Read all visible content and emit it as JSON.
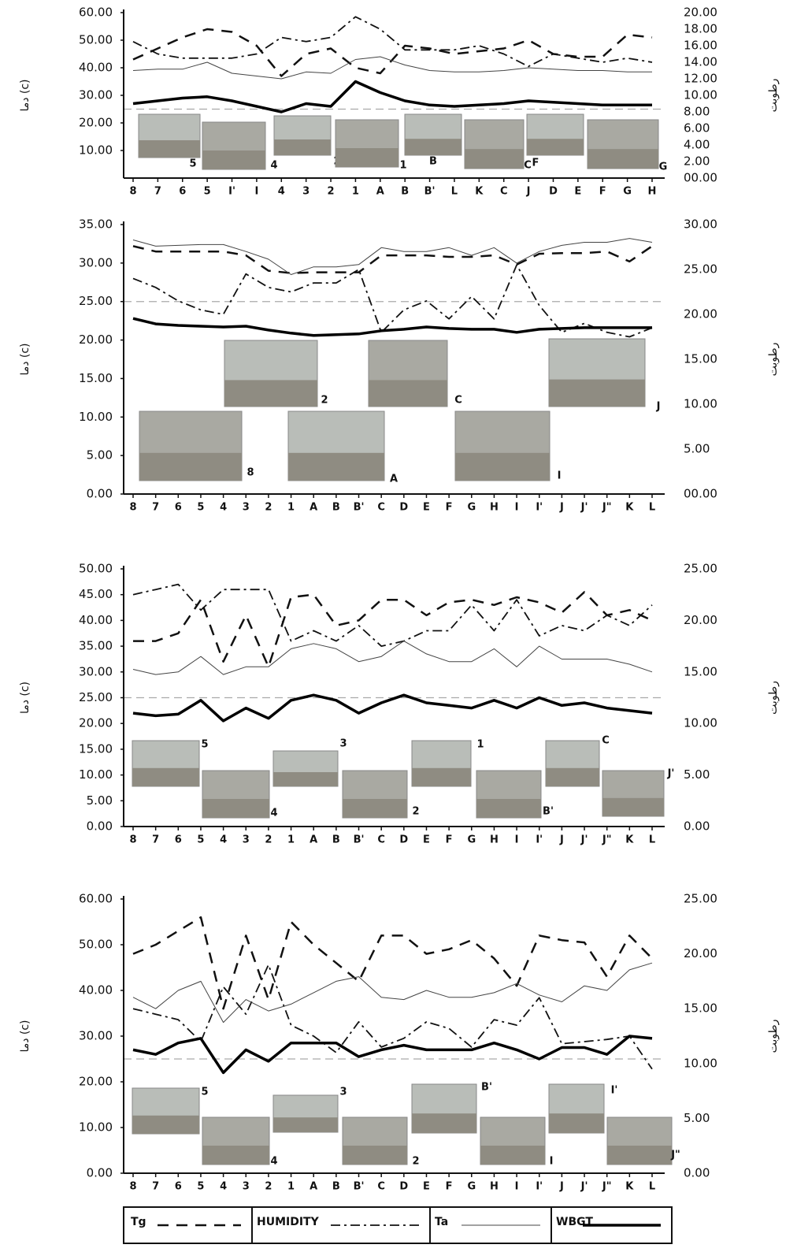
{
  "chart_data": [
    {
      "type": "line",
      "y_label": "دما (c)",
      "y2_label": "رطوبت",
      "categories": [
        "8",
        "7",
        "6",
        "5",
        "I'",
        "I",
        "4",
        "3",
        "2",
        "1",
        "A",
        "B",
        "B'",
        "L",
        "K",
        "C",
        "J",
        "D",
        "E",
        "F",
        "G",
        "H"
      ],
      "series": [
        {
          "name": "Tg",
          "color": "#111111",
          "dash": "14,10",
          "width": 2.5,
          "values": [
            43,
            47,
            51,
            54,
            53,
            48,
            37,
            45,
            47,
            40,
            38,
            48,
            47,
            45,
            46,
            47,
            50,
            45,
            44,
            44,
            52,
            51
          ]
        },
        {
          "name": "HUMIDITY",
          "color": "#111111",
          "dash": "12,5,3,5",
          "width": 1.8,
          "axis": "y2",
          "values": [
            16.5,
            15,
            14.5,
            14.5,
            14.5,
            15,
            17,
            16.5,
            17,
            19.5,
            18,
            15.5,
            15.5,
            15.5,
            16,
            15,
            13.5,
            15,
            14.5,
            14,
            14.5,
            14
          ]
        },
        {
          "name": "Ta",
          "color": "#444444",
          "dash": "none",
          "width": 1,
          "values": [
            39,
            39.5,
            39.5,
            42,
            38,
            37,
            36,
            38.5,
            38,
            43,
            44,
            41,
            39,
            38.5,
            38.5,
            39,
            40,
            39.5,
            39,
            39,
            38.5,
            38.5
          ]
        },
        {
          "name": "WBGT",
          "color": "#000000",
          "dash": "none",
          "width": 3.5,
          "values": [
            27,
            28,
            29,
            29.5,
            28,
            26,
            24,
            27,
            26,
            35,
            31,
            28,
            26.5,
            26,
            26.5,
            27,
            28,
            27.5,
            27,
            26.5,
            26.5,
            26.5
          ]
        }
      ],
      "ylim": [
        0,
        60
      ],
      "yticks": [
        {
          "value": 10,
          "label": "10.00"
        },
        {
          "value": 20,
          "label": "20.00"
        },
        {
          "value": 30,
          "label": "30.00"
        },
        {
          "value": 40,
          "label": "40.00"
        },
        {
          "value": 50,
          "label": "50.00"
        },
        {
          "value": 60,
          "label": "60.00"
        }
      ],
      "y2lim": [
        0,
        20
      ],
      "y2ticks": [
        {
          "value": 0,
          "label": "00.00"
        },
        {
          "value": 2,
          "label": "2.00"
        },
        {
          "value": 4,
          "label": "4.00"
        },
        {
          "value": 6,
          "label": "6.00"
        },
        {
          "value": 8,
          "label": "8.00"
        },
        {
          "value": 10,
          "label": "10.00"
        },
        {
          "value": 12,
          "label": "12.00"
        },
        {
          "value": 14,
          "label": "14.00"
        },
        {
          "value": 16,
          "label": "16.00"
        },
        {
          "value": 18,
          "label": "18.00"
        },
        {
          "value": 20,
          "label": "20.00"
        }
      ],
      "reference_line": 25,
      "annotations": [
        "5",
        "4",
        "2",
        "1",
        "B",
        "C",
        "F",
        "G"
      ]
    },
    {
      "type": "line",
      "y_label": "دما (c)",
      "y2_label": "رطوبت",
      "categories": [
        "8",
        "7",
        "6",
        "5",
        "4",
        "3",
        "2",
        "1",
        "A",
        "B",
        "B'",
        "C",
        "D",
        "E",
        "F",
        "G",
        "H",
        "I",
        "I'",
        "J",
        "J'",
        "J\"",
        "K",
        "L"
      ],
      "series": [
        {
          "name": "Tg",
          "color": "#111111",
          "dash": "14,10",
          "width": 2.5,
          "values": [
            32.2,
            31.5,
            31.5,
            31.5,
            31.5,
            31,
            29,
            28.7,
            28.8,
            28.8,
            28.8,
            31,
            31,
            31,
            30.8,
            30.8,
            31,
            29.8,
            31.2,
            31.3,
            31.3,
            31.5,
            30.2,
            32.2
          ]
        },
        {
          "name": "HUMIDITY",
          "color": "#111111",
          "dash": "12,5,3,5",
          "width": 1.8,
          "axis": "y2",
          "values": [
            24,
            23,
            21.5,
            20.5,
            20,
            24.5,
            23,
            22.5,
            23.5,
            23.5,
            25,
            18,
            20.5,
            21.5,
            19.5,
            22,
            19.5,
            25.5,
            21,
            18,
            19,
            18,
            17.5,
            18.5
          ]
        },
        {
          "name": "Ta",
          "color": "#444444",
          "dash": "none",
          "width": 1,
          "values": [
            33,
            32.2,
            32.3,
            32.4,
            32.4,
            31.5,
            30.5,
            28.5,
            29.5,
            29.5,
            29.8,
            32,
            31.5,
            31.5,
            32,
            31,
            32,
            30,
            31.5,
            32.3,
            32.7,
            32.7,
            33.2,
            32.7
          ]
        },
        {
          "name": "WBGT",
          "color": "#000000",
          "dash": "none",
          "width": 3.5,
          "values": [
            22.8,
            22.1,
            21.9,
            21.8,
            21.7,
            21.8,
            21.3,
            20.9,
            20.6,
            20.7,
            20.8,
            21.2,
            21.4,
            21.7,
            21.5,
            21.4,
            21.4,
            21,
            21.4,
            21.5,
            21.6,
            21.6,
            21.6,
            21.6
          ]
        }
      ],
      "ylim": [
        0,
        35
      ],
      "yticks": [
        {
          "value": 0,
          "label": "0.00"
        },
        {
          "value": 5,
          "label": "5.00"
        },
        {
          "value": 10,
          "label": "10.00"
        },
        {
          "value": 15,
          "label": "15.00"
        },
        {
          "value": 20,
          "label": "20.00"
        },
        {
          "value": 25,
          "label": "25.00"
        },
        {
          "value": 30,
          "label": "30.00"
        },
        {
          "value": 35,
          "label": "35.00"
        }
      ],
      "y2lim": [
        0,
        30
      ],
      "y2ticks": [
        {
          "value": 0,
          "label": "00.00"
        },
        {
          "value": 5,
          "label": "5.00"
        },
        {
          "value": 10,
          "label": "10.00"
        },
        {
          "value": 15,
          "label": "15.00"
        },
        {
          "value": 20,
          "label": "20.00"
        },
        {
          "value": 25,
          "label": "25.00"
        },
        {
          "value": 30,
          "label": "30.00"
        }
      ],
      "reference_line": 25,
      "annotations": [
        "2",
        "C",
        "J",
        "8",
        "A",
        "I"
      ]
    },
    {
      "type": "line",
      "y_label": "دما (c)",
      "y2_label": "رطوبت",
      "categories": [
        "8",
        "7",
        "6",
        "5",
        "4",
        "3",
        "2",
        "1",
        "A",
        "B",
        "B'",
        "C",
        "D",
        "E",
        "F",
        "G",
        "H",
        "I",
        "I'",
        "J",
        "J'",
        "J\"",
        "K",
        "L"
      ],
      "series": [
        {
          "name": "Tg",
          "color": "#111111",
          "dash": "14,10",
          "width": 2.5,
          "values": [
            36,
            36,
            37.5,
            44,
            32,
            41,
            31,
            44.5,
            45,
            39,
            40,
            44,
            44,
            41,
            43.5,
            44,
            43,
            44.5,
            43.5,
            41.5,
            45.5,
            41,
            42,
            40
          ]
        },
        {
          "name": "HUMIDITY",
          "color": "#111111",
          "dash": "12,5,3,5",
          "width": 1.8,
          "axis": "y2",
          "values": [
            22.5,
            23,
            23.5,
            21,
            23,
            23,
            23,
            18,
            19,
            18,
            19.5,
            17.5,
            18,
            19,
            19,
            21.5,
            19,
            22,
            18.5,
            19.5,
            19,
            20.5,
            19.5,
            21.5
          ]
        },
        {
          "name": "Ta",
          "color": "#444444",
          "dash": "none",
          "width": 1,
          "values": [
            30.5,
            29.5,
            30,
            33,
            29.5,
            31,
            31,
            34.5,
            35.5,
            34.5,
            32,
            33,
            36,
            33.5,
            32,
            32,
            34.5,
            31,
            35,
            32.5,
            32.5,
            32.5,
            31.5,
            30
          ]
        },
        {
          "name": "WBGT",
          "color": "#000000",
          "dash": "none",
          "width": 3.5,
          "values": [
            22,
            21.5,
            21.8,
            24.5,
            20.5,
            23,
            21,
            24.5,
            25.5,
            24.5,
            22,
            24,
            25.5,
            24,
            23.5,
            23,
            24.5,
            23,
            25,
            23.5,
            24,
            23,
            22.5,
            22
          ]
        }
      ],
      "ylim": [
        0,
        50
      ],
      "yticks": [
        {
          "value": 0,
          "label": "0.00"
        },
        {
          "value": 5,
          "label": "5.00"
        },
        {
          "value": 10,
          "label": "10.00"
        },
        {
          "value": 15,
          "label": "15.00"
        },
        {
          "value": 20,
          "label": "20.00"
        },
        {
          "value": 25,
          "label": "25.00"
        },
        {
          "value": 30,
          "label": "30.00"
        },
        {
          "value": 35,
          "label": "35.00"
        },
        {
          "value": 40,
          "label": "40.00"
        },
        {
          "value": 45,
          "label": "45.00"
        },
        {
          "value": 50,
          "label": "50.00"
        }
      ],
      "y2lim": [
        0,
        25
      ],
      "y2ticks": [
        {
          "value": 0,
          "label": "0.00"
        },
        {
          "value": 5,
          "label": "5.00"
        },
        {
          "value": 10,
          "label": "10.00"
        },
        {
          "value": 15,
          "label": "15.00"
        },
        {
          "value": 20,
          "label": "20.00"
        },
        {
          "value": 25,
          "label": "25.00"
        }
      ],
      "reference_line": 25,
      "annotations": [
        "5",
        "4",
        "3",
        "2",
        "1",
        "B'",
        "C",
        "J'"
      ]
    },
    {
      "type": "line",
      "y_label": "دما (c)",
      "y2_label": "رطوبت",
      "categories": [
        "8",
        "7",
        "6",
        "5",
        "4",
        "3",
        "2",
        "1",
        "A",
        "B",
        "B'",
        "C",
        "D",
        "E",
        "F",
        "G",
        "H",
        "I",
        "I'",
        "J",
        "J'",
        "J\"",
        "K",
        "L"
      ],
      "series": [
        {
          "name": "Tg",
          "color": "#111111",
          "dash": "14,10",
          "width": 2.5,
          "values": [
            48,
            50,
            53,
            56,
            36,
            52,
            38,
            55,
            50,
            46,
            42,
            52,
            52,
            48,
            49,
            51,
            47,
            41,
            52,
            51,
            50.5,
            43,
            52,
            47
          ]
        },
        {
          "name": "HUMIDITY",
          "color": "#111111",
          "dash": "12,5,3,5",
          "width": 1.8,
          "axis": "y2",
          "values": [
            15,
            14.5,
            14,
            12,
            17,
            14.5,
            19,
            13.5,
            12.5,
            11,
            13.8,
            11.5,
            12.3,
            13.8,
            13.2,
            11.5,
            14,
            13.5,
            16,
            11.8,
            12,
            12.2,
            12.5,
            9.5
          ]
        },
        {
          "name": "Ta",
          "color": "#444444",
          "dash": "none",
          "width": 1,
          "values": [
            38.5,
            36,
            40,
            42,
            33,
            38,
            35.5,
            37,
            39.5,
            42,
            43,
            38.5,
            38,
            40,
            38.5,
            38.5,
            39.5,
            41.5,
            39,
            37.5,
            41,
            40,
            44.5,
            46
          ]
        },
        {
          "name": "WBGT",
          "color": "#000000",
          "dash": "none",
          "width": 3.5,
          "values": [
            27,
            26,
            28.5,
            29.5,
            22,
            27,
            24.5,
            28.5,
            28.5,
            28.5,
            25.5,
            27,
            28,
            27,
            27,
            27,
            28.5,
            27,
            25,
            27.5,
            27.5,
            26,
            30,
            29.5
          ]
        }
      ],
      "ylim": [
        0,
        60
      ],
      "yticks": [
        {
          "value": 0,
          "label": "0.00"
        },
        {
          "value": 10,
          "label": "10.00"
        },
        {
          "value": 20,
          "label": "20.00"
        },
        {
          "value": 30,
          "label": "30.00"
        },
        {
          "value": 40,
          "label": "40.00"
        },
        {
          "value": 50,
          "label": "50.00"
        },
        {
          "value": 60,
          "label": "60.00"
        }
      ],
      "y2lim": [
        0,
        25
      ],
      "y2ticks": [
        {
          "value": 0,
          "label": "0.00"
        },
        {
          "value": 5,
          "label": "5.00"
        },
        {
          "value": 10,
          "label": "10.00"
        },
        {
          "value": 15,
          "label": "15.00"
        },
        {
          "value": 20,
          "label": "20.00"
        },
        {
          "value": 25,
          "label": "25.00"
        }
      ],
      "reference_line": 25,
      "annotations": [
        "5",
        "4",
        "3",
        "2",
        "B'",
        "I",
        "I'",
        "J\""
      ]
    }
  ]
}
